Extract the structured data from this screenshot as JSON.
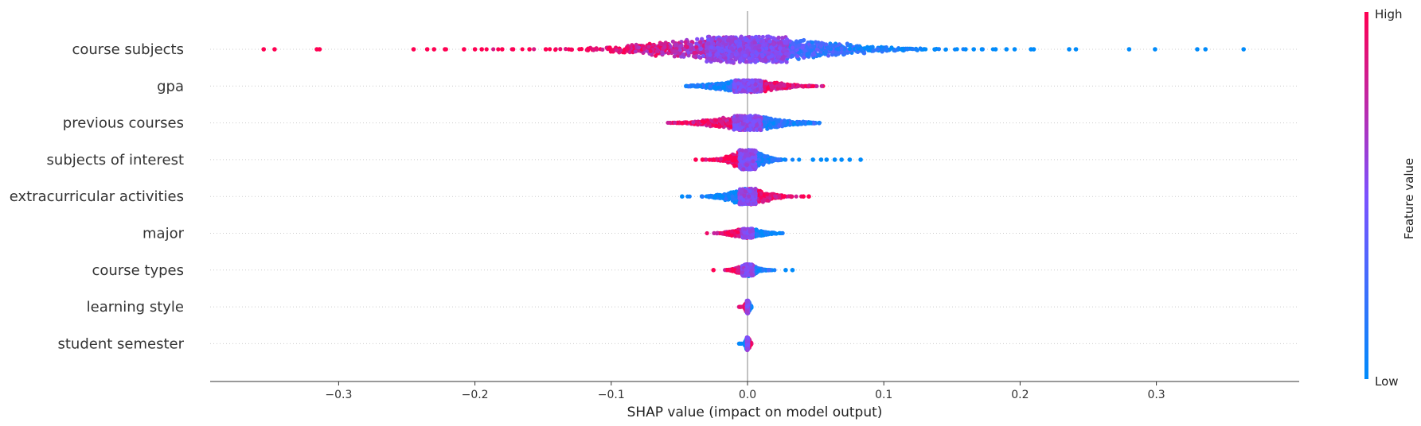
{
  "chart_data": {
    "type": "scatter",
    "subtype": "shap-beeswarm-summary",
    "xlabel": "SHAP value (impact on model output)",
    "xlim": [
      -0.39,
      0.4
    ],
    "xticks": [
      -0.3,
      -0.2,
      -0.1,
      0.0,
      0.1,
      0.2,
      0.3
    ],
    "xtick_labels": [
      "−0.3",
      "−0.2",
      "−0.1",
      "0.0",
      "0.1",
      "0.2",
      "0.3"
    ],
    "zero_line": true,
    "colorbar": {
      "label": "Feature value",
      "high_label": "High",
      "low_label": "Low",
      "low_color": "#008bfb",
      "mid_color": "#7c52ff",
      "high_color": "#ff0052"
    },
    "features": [
      {
        "name": "course subjects",
        "min": -0.355,
        "max": 0.365,
        "spread": 1.0,
        "outliers": [
          {
            "x": -0.355,
            "v": 1.0
          },
          {
            "x": -0.347,
            "v": 1.0
          },
          {
            "x": -0.316,
            "v": 1.0
          },
          {
            "x": -0.314,
            "v": 1.0
          },
          {
            "x": -0.245,
            "v": 1.0
          },
          {
            "x": -0.235,
            "v": 1.0
          },
          {
            "x": -0.23,
            "v": 1.0
          },
          {
            "x": -0.222,
            "v": 1.0
          },
          {
            "x": -0.208,
            "v": 1.0
          },
          {
            "x": -0.2,
            "v": 1.0
          },
          {
            "x": -0.195,
            "v": 1.0
          },
          {
            "x": -0.18,
            "v": 1.0
          },
          {
            "x": -0.172,
            "v": 1.0
          },
          {
            "x": -0.16,
            "v": 1.0
          },
          {
            "x": -0.148,
            "v": 1.0
          },
          {
            "x": 0.16,
            "v": 0.0
          },
          {
            "x": 0.166,
            "v": 0.0
          },
          {
            "x": 0.172,
            "v": 0.0
          },
          {
            "x": 0.182,
            "v": 0.0
          },
          {
            "x": 0.19,
            "v": 0.0
          },
          {
            "x": 0.196,
            "v": 0.0
          },
          {
            "x": 0.208,
            "v": 0.0
          },
          {
            "x": 0.21,
            "v": 0.0
          },
          {
            "x": 0.236,
            "v": 0.0
          },
          {
            "x": 0.241,
            "v": 0.0
          },
          {
            "x": 0.28,
            "v": 0.0
          },
          {
            "x": 0.299,
            "v": 0.0
          },
          {
            "x": 0.33,
            "v": 0.0
          },
          {
            "x": 0.336,
            "v": 0.0
          },
          {
            "x": 0.364,
            "v": 0.0
          }
        ]
      },
      {
        "name": "gpa",
        "min": -0.047,
        "max": 0.058,
        "spread": 0.45,
        "outliers": []
      },
      {
        "name": "previous courses",
        "min": -0.06,
        "max": 0.054,
        "spread": 0.55,
        "outliers": []
      },
      {
        "name": "subjects of interest",
        "min": -0.038,
        "max": 0.083,
        "spread": 0.75,
        "outliers": [
          {
            "x": -0.038,
            "v": 1.0
          },
          {
            "x": -0.033,
            "v": 1.0
          },
          {
            "x": -0.025,
            "v": 1.0
          },
          {
            "x": 0.048,
            "v": 0.0
          },
          {
            "x": 0.054,
            "v": 0.0
          },
          {
            "x": 0.058,
            "v": 0.0
          },
          {
            "x": 0.064,
            "v": 0.0
          },
          {
            "x": 0.069,
            "v": 0.0
          },
          {
            "x": 0.075,
            "v": 0.0
          },
          {
            "x": 0.083,
            "v": 0.0
          }
        ]
      },
      {
        "name": "extracurricular activities",
        "min": -0.048,
        "max": 0.045,
        "spread": 0.6,
        "outliers": [
          {
            "x": -0.048,
            "v": 0.0
          },
          {
            "x": 0.041,
            "v": 1.0
          },
          {
            "x": 0.045,
            "v": 1.0
          }
        ]
      },
      {
        "name": "major",
        "min": -0.033,
        "max": 0.03,
        "spread": 0.35,
        "outliers": []
      },
      {
        "name": "course types",
        "min": -0.025,
        "max": 0.033,
        "spread": 0.45,
        "outliers": [
          {
            "x": -0.025,
            "v": 1.0
          },
          {
            "x": 0.028,
            "v": 0.0
          },
          {
            "x": 0.033,
            "v": 0.0
          }
        ]
      },
      {
        "name": "learning style",
        "min": -0.002,
        "max": 0.003,
        "spread": 0.5,
        "outliers": []
      },
      {
        "name": "student semester",
        "min": -0.002,
        "max": 0.003,
        "spread": 0.5,
        "outliers": []
      }
    ]
  }
}
